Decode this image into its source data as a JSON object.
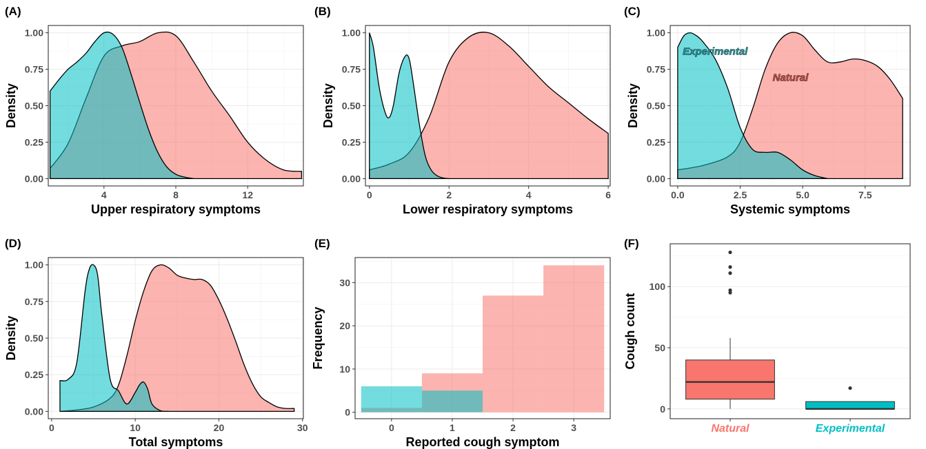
{
  "colors": {
    "natural": "#F8766D",
    "experimental": "#00BFC4",
    "overlap": "#8C9E98"
  },
  "chart_data": [
    {
      "panel": "(A)",
      "type": "area",
      "xlabel": "Upper respiratory symptoms",
      "ylabel": "Density",
      "xlim": [
        0.9,
        15.1
      ],
      "ylim": [
        -0.05,
        1.05
      ],
      "xticks": [
        4,
        8,
        12
      ],
      "yticks": [
        0.0,
        0.25,
        0.5,
        0.75,
        1.0
      ],
      "tick_labels_y": [
        "0.00",
        "0.25",
        "0.50",
        "0.75",
        "1.00"
      ],
      "series": [
        {
          "group": "experimental",
          "x": [
            1,
            1.5,
            2,
            2.5,
            3,
            3.5,
            4,
            4.5,
            5,
            5.5,
            6,
            6.5,
            7,
            7.5,
            8,
            8.5,
            9
          ],
          "y": [
            0.6,
            0.68,
            0.75,
            0.8,
            0.86,
            0.94,
            1.0,
            0.99,
            0.9,
            0.72,
            0.52,
            0.33,
            0.18,
            0.08,
            0.03,
            0.01,
            0.0
          ]
        },
        {
          "group": "natural",
          "x": [
            1,
            2,
            3,
            4,
            5,
            6,
            7,
            8,
            9,
            10,
            11,
            12,
            13,
            14,
            15
          ],
          "y": [
            0.07,
            0.24,
            0.55,
            0.84,
            0.91,
            0.94,
            1.0,
            0.98,
            0.8,
            0.6,
            0.43,
            0.25,
            0.13,
            0.06,
            0.05
          ]
        }
      ]
    },
    {
      "panel": "(B)",
      "type": "area",
      "xlabel": "Lower respiratory symptoms",
      "ylabel": "Density",
      "xlim": [
        -0.1,
        6.05
      ],
      "ylim": [
        -0.05,
        1.05
      ],
      "xticks": [
        0,
        2,
        4,
        6
      ],
      "yticks": [
        0.0,
        0.25,
        0.5,
        0.75,
        1.0
      ],
      "tick_labels_y": [
        "0.00",
        "0.25",
        "0.50",
        "0.75",
        "1.00"
      ],
      "series": [
        {
          "group": "experimental",
          "x": [
            0,
            0.1,
            0.25,
            0.4,
            0.5,
            0.6,
            0.75,
            0.9,
            1.0,
            1.1,
            1.25,
            1.4,
            1.55,
            1.7,
            1.85,
            2.0
          ],
          "y": [
            1.0,
            0.9,
            0.62,
            0.45,
            0.42,
            0.5,
            0.73,
            0.84,
            0.82,
            0.66,
            0.38,
            0.16,
            0.06,
            0.02,
            0.005,
            0.0
          ]
        },
        {
          "group": "natural",
          "x": [
            0,
            0.5,
            1,
            1.5,
            2,
            2.5,
            3,
            3.5,
            4,
            4.5,
            5,
            5.5,
            6
          ],
          "y": [
            0.06,
            0.1,
            0.18,
            0.42,
            0.8,
            0.97,
            1.0,
            0.91,
            0.77,
            0.63,
            0.52,
            0.41,
            0.31
          ]
        }
      ]
    },
    {
      "panel": "(C)",
      "type": "area",
      "xlabel": "Systemic symptoms",
      "ylabel": "Density",
      "xlim": [
        -0.3,
        9.3
      ],
      "ylim": [
        -0.05,
        1.05
      ],
      "xticks": [
        0.0,
        2.5,
        5.0,
        7.5
      ],
      "yticks": [
        0.0,
        0.25,
        0.5,
        0.75,
        1.0
      ],
      "tick_labels_x": [
        "0.0",
        "2.5",
        "5.0",
        "7.5"
      ],
      "tick_labels_y": [
        "0.00",
        "0.25",
        "0.50",
        "0.75",
        "1.00"
      ],
      "annotations": [
        "Experimental",
        "Natural"
      ],
      "series": [
        {
          "group": "experimental",
          "x": [
            0,
            0.25,
            0.5,
            0.75,
            1,
            1.5,
            2,
            2.5,
            3,
            3.5,
            4,
            4.5,
            5,
            5.5,
            6
          ],
          "y": [
            0.9,
            0.98,
            1.0,
            0.98,
            0.94,
            0.82,
            0.62,
            0.35,
            0.2,
            0.18,
            0.18,
            0.13,
            0.06,
            0.02,
            0.0
          ]
        },
        {
          "group": "natural",
          "x": [
            0,
            1,
            2,
            2.5,
            3,
            3.5,
            4,
            4.5,
            5,
            5.5,
            6,
            6.5,
            7,
            7.5,
            8,
            8.5,
            9
          ],
          "y": [
            0.06,
            0.09,
            0.15,
            0.25,
            0.48,
            0.75,
            0.93,
            1.0,
            0.98,
            0.88,
            0.8,
            0.8,
            0.82,
            0.81,
            0.77,
            0.68,
            0.55
          ]
        }
      ]
    },
    {
      "panel": "(D)",
      "type": "area",
      "xlabel": "Total symptoms",
      "ylabel": "Density",
      "xlim": [
        -0.4,
        30.1
      ],
      "ylim": [
        -0.05,
        1.05
      ],
      "xticks": [
        0,
        10,
        20,
        30
      ],
      "yticks": [
        0.0,
        0.25,
        0.5,
        0.75,
        1.0
      ],
      "tick_labels_y": [
        "0.00",
        "0.25",
        "0.50",
        "0.75",
        "1.00"
      ],
      "series": [
        {
          "group": "experimental",
          "x": [
            1,
            2,
            3,
            4,
            4.5,
            5,
            5.5,
            6,
            7,
            8,
            9,
            10,
            10.5,
            11,
            11.5,
            12,
            13,
            14
          ],
          "y": [
            0.21,
            0.22,
            0.33,
            0.82,
            0.97,
            1.0,
            0.93,
            0.66,
            0.22,
            0.14,
            0.05,
            0.13,
            0.18,
            0.2,
            0.15,
            0.05,
            0.005,
            0.0
          ]
        },
        {
          "group": "natural",
          "x": [
            1,
            3,
            5,
            7,
            8,
            9,
            10,
            11,
            12,
            13,
            14,
            15,
            16,
            17,
            18,
            19,
            20,
            21,
            22,
            23,
            24,
            25,
            26,
            27,
            28,
            29
          ],
          "y": [
            0.0,
            0.01,
            0.03,
            0.09,
            0.18,
            0.38,
            0.62,
            0.82,
            0.96,
            1.0,
            0.98,
            0.93,
            0.91,
            0.9,
            0.9,
            0.86,
            0.76,
            0.63,
            0.48,
            0.32,
            0.19,
            0.1,
            0.06,
            0.03,
            0.02,
            0.02
          ]
        }
      ]
    },
    {
      "panel": "(E)",
      "type": "bar",
      "xlabel": "Reported cough symptom",
      "ylabel": "Frequency",
      "xlim": [
        -0.6,
        3.6
      ],
      "ylim": [
        -1.5,
        35.8
      ],
      "categories": [
        "0",
        "1",
        "2",
        "3"
      ],
      "yticks": [
        0,
        10,
        20,
        30
      ],
      "series": [
        {
          "group": "natural",
          "values": [
            1,
            9,
            27,
            34
          ]
        },
        {
          "group": "experimental",
          "values": [
            6,
            5,
            0,
            0
          ]
        }
      ]
    },
    {
      "panel": "(F)",
      "type": "box",
      "xlabel": "",
      "ylabel": "Cough count",
      "ylim": [
        -8,
        135
      ],
      "yticks": [
        0,
        50,
        100
      ],
      "categories": [
        "Natural",
        "Experimental"
      ],
      "series": [
        {
          "group": "natural",
          "name": "Natural",
          "min": 0,
          "q1": 8,
          "median": 22,
          "q3": 40,
          "whisker_high": 58,
          "outliers": [
            95,
            97,
            111,
            116,
            128
          ]
        },
        {
          "group": "experimental",
          "name": "Experimental",
          "min": 0,
          "q1": 0,
          "median": 0,
          "q3": 6,
          "whisker_high": 6,
          "outliers": [
            17
          ]
        }
      ]
    }
  ]
}
